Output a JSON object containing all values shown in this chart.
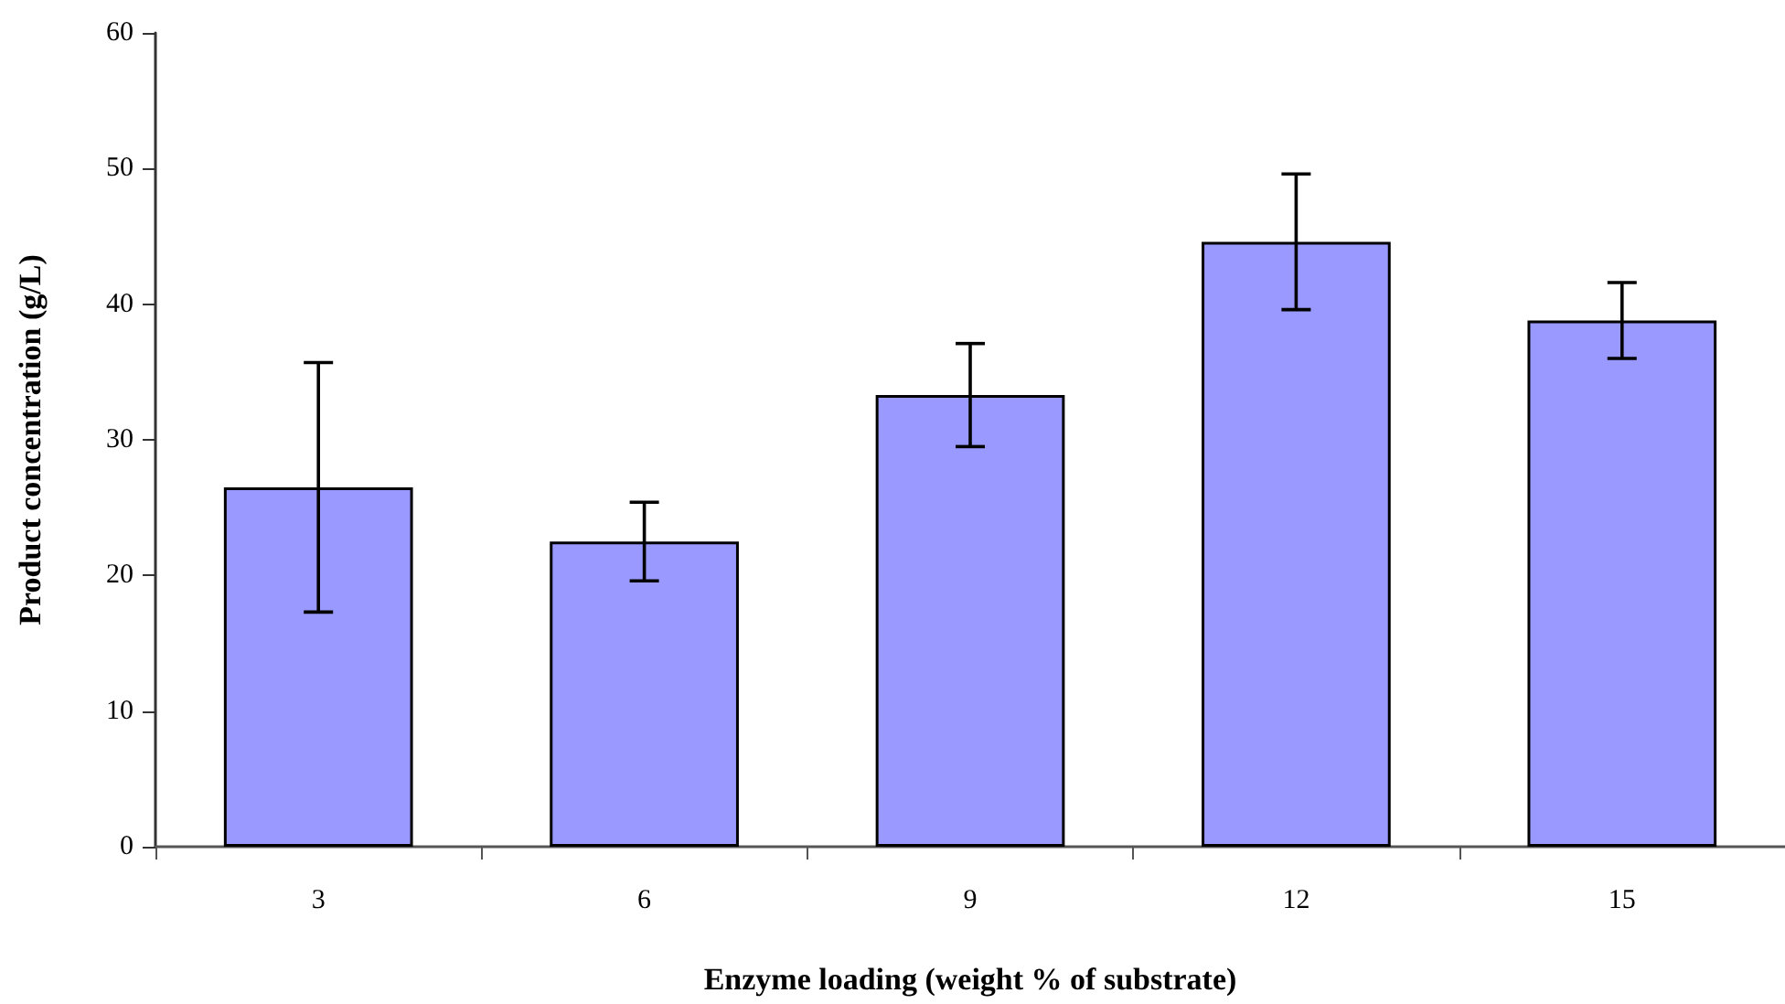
{
  "chart_data": {
    "type": "bar",
    "xlabel": "Enzyme loading (weight % of substrate)",
    "ylabel": "Product concentration (g/L)",
    "categories": [
      "3",
      "6",
      "9",
      "12",
      "15"
    ],
    "values": [
      26.5,
      22.5,
      33.3,
      44.6,
      38.8
    ],
    "errors": [
      9.2,
      2.9,
      3.8,
      5.0,
      2.8
    ],
    "color": "#9999ff",
    "ylim": [
      0,
      60
    ],
    "yticks": [
      0,
      10,
      20,
      30,
      40,
      50,
      60
    ],
    "grid": false
  }
}
